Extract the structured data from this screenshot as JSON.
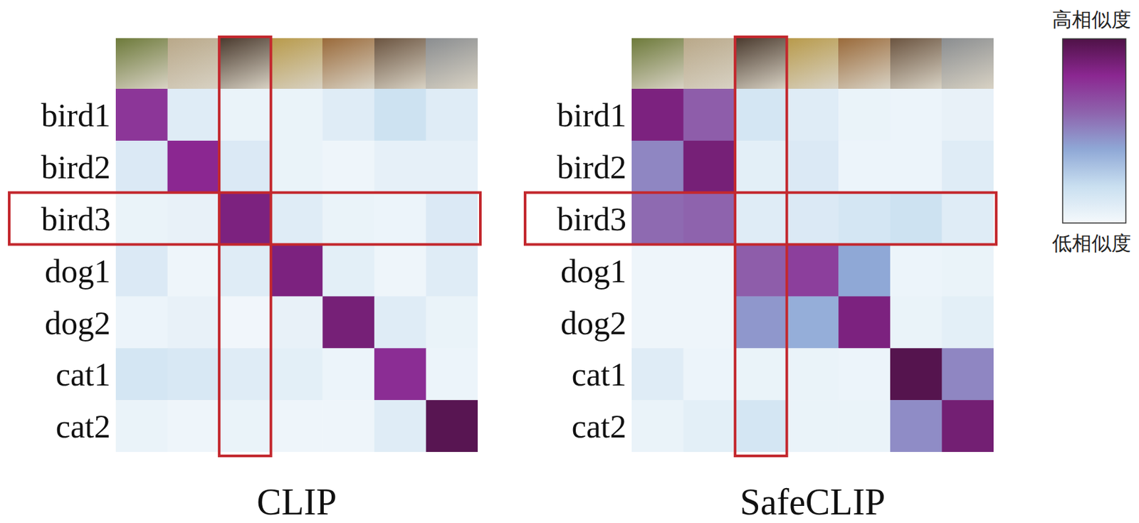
{
  "chart_data": [
    {
      "type": "heatmap",
      "title": "CLIP",
      "rows": [
        "bird1",
        "bird2",
        "bird3",
        "dog1",
        "dog2",
        "cat1",
        "cat2"
      ],
      "tick_labels": "y",
      "highlight": {
        "row": 2,
        "column": 2
      },
      "cells": [
        [
          0.75,
          0.1,
          0.05,
          0.05,
          0.1,
          0.18,
          0.1
        ],
        [
          0.12,
          0.8,
          0.12,
          0.05,
          0.03,
          0.07,
          0.07
        ],
        [
          0.05,
          0.06,
          0.85,
          0.1,
          0.05,
          0.04,
          0.12
        ],
        [
          0.12,
          0.03,
          0.1,
          0.85,
          0.08,
          0.03,
          0.1
        ],
        [
          0.04,
          0.06,
          0.02,
          0.06,
          0.87,
          0.1,
          0.05
        ],
        [
          0.15,
          0.13,
          0.1,
          0.08,
          0.04,
          0.78,
          0.04
        ],
        [
          0.05,
          0.03,
          0.05,
          0.03,
          0.03,
          0.1,
          0.97
        ]
      ]
    },
    {
      "type": "heatmap",
      "title": "SafeCLIP",
      "rows": [
        "bird1",
        "bird2",
        "bird3",
        "dog1",
        "dog2",
        "cat1",
        "cat2"
      ],
      "tick_labels": "y",
      "highlight": {
        "row": 2,
        "column": 2
      },
      "cells": [
        [
          0.85,
          0.62,
          0.15,
          0.1,
          0.05,
          0.04,
          0.06
        ],
        [
          0.5,
          0.87,
          0.08,
          0.12,
          0.04,
          0.04,
          0.1
        ],
        [
          0.58,
          0.6,
          0.1,
          0.12,
          0.15,
          0.18,
          0.1
        ],
        [
          0.03,
          0.03,
          0.62,
          0.72,
          0.4,
          0.04,
          0.05
        ],
        [
          0.03,
          0.03,
          0.45,
          0.38,
          0.85,
          0.05,
          0.08
        ],
        [
          0.1,
          0.04,
          0.05,
          0.05,
          0.04,
          0.98,
          0.5
        ],
        [
          0.05,
          0.08,
          0.15,
          0.05,
          0.05,
          0.48,
          0.88
        ]
      ]
    }
  ],
  "colorbar": {
    "range": [
      0,
      1
    ],
    "high_label": "高相似度",
    "low_label": "低相似度",
    "colors": [
      "#f5f9fc",
      "#c9dff0",
      "#8fa8d6",
      "#8e63ad",
      "#8b2791",
      "#4f1247"
    ]
  }
}
